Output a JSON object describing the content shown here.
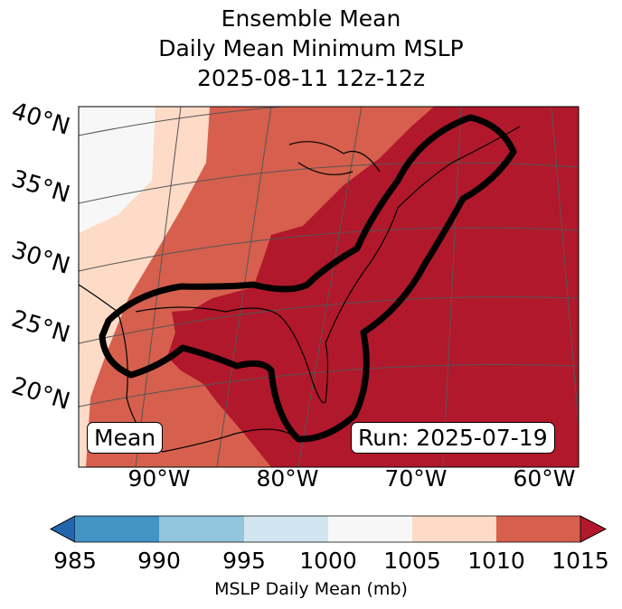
{
  "title": {
    "line1": "Ensemble Mean",
    "line2": "Daily Mean Minimum MSLP",
    "line3": "2025-08-11 12z-12z"
  },
  "map": {
    "lat_labels": [
      "40°N",
      "35°N",
      "30°N",
      "25°N",
      "20°N"
    ],
    "lon_labels": [
      "90°W",
      "80°W",
      "70°W",
      "60°W"
    ],
    "left_box": "Mean",
    "right_box": "Run: 2025-07-19"
  },
  "colorbar": {
    "label": "MSLP Daily Mean (mb)",
    "ticks": [
      "985",
      "990",
      "995",
      "1000",
      "1005",
      "1010",
      "1015"
    ],
    "colors": [
      "#2166ac",
      "#4393c3",
      "#92c5de",
      "#d1e5f0",
      "#f7f7f7",
      "#fddbc7",
      "#d6604d",
      "#b2182b"
    ]
  }
}
